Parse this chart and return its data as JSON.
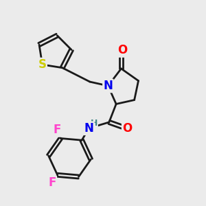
{
  "bg_color": "#ebebeb",
  "bond_color": "#1a1a1a",
  "bond_width": 2.0,
  "atom_colors": {
    "O": "#ff0000",
    "N": "#0000ee",
    "S": "#cccc00",
    "F": "#ff44cc",
    "H": "#448888",
    "C": "#1a1a1a"
  },
  "font_size_atom": 12,
  "font_size_H": 9,
  "figsize": [
    3.0,
    3.0
  ],
  "dpi": 100
}
